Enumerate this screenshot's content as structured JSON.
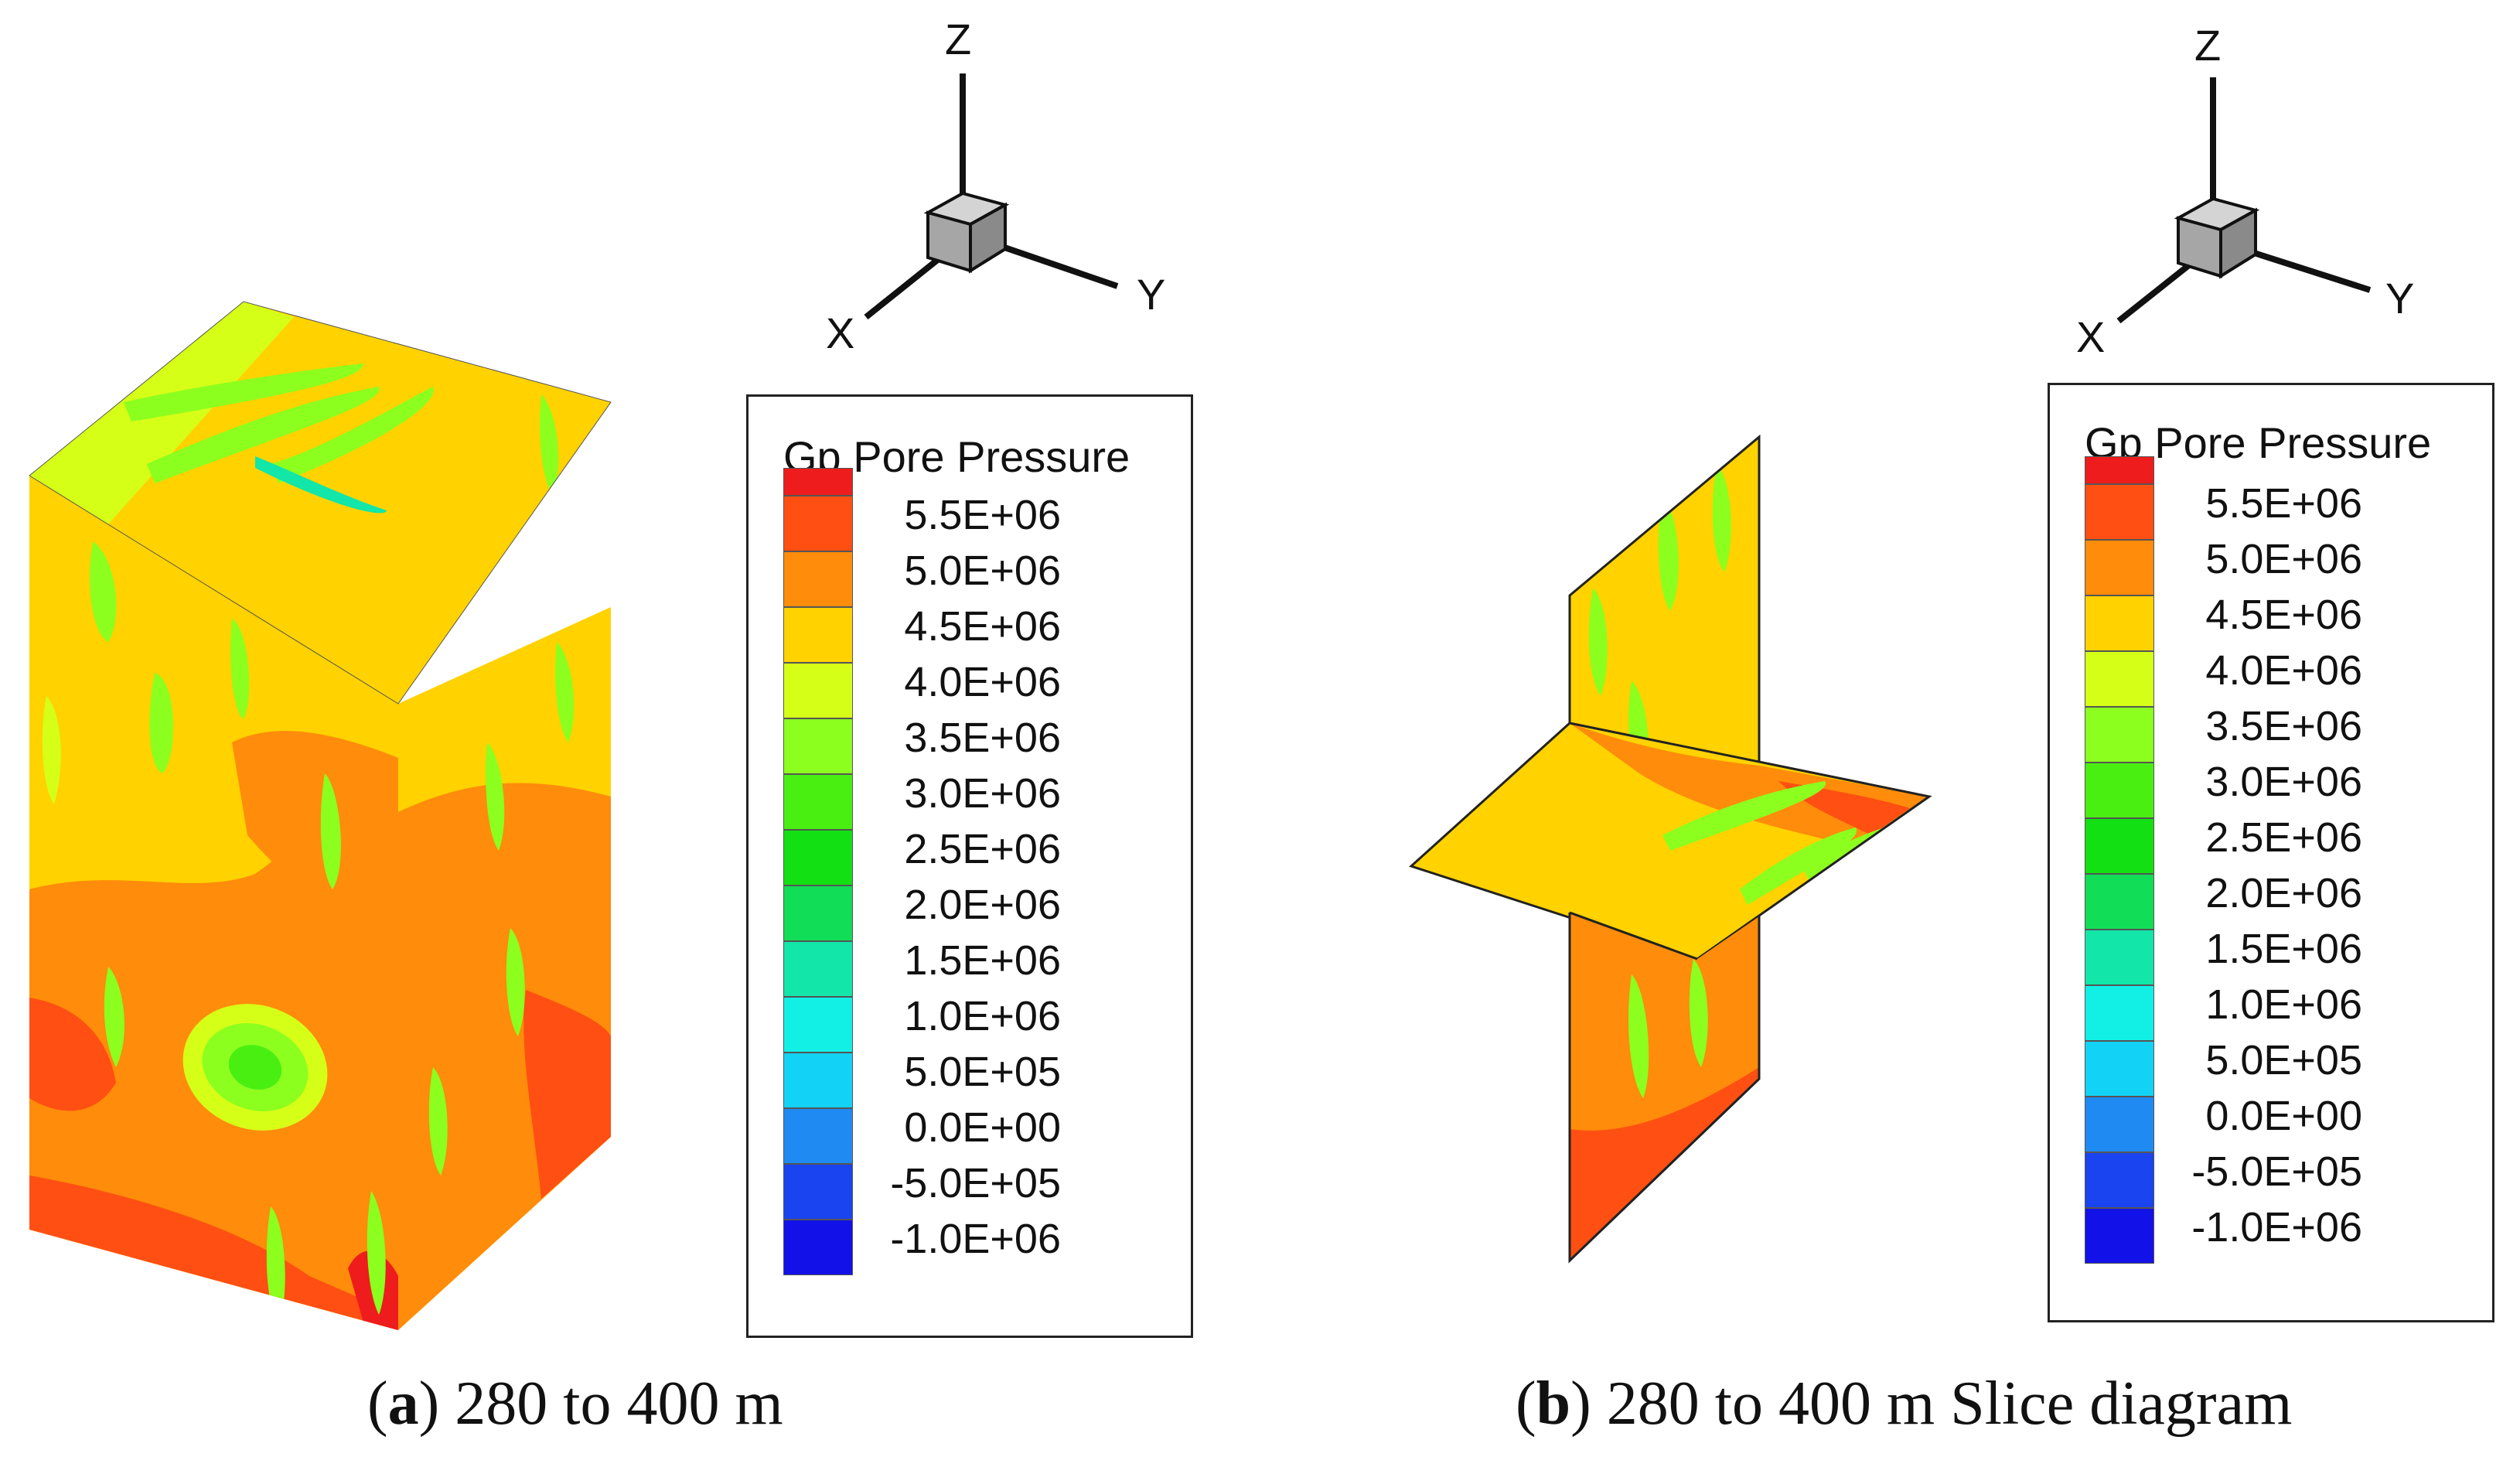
{
  "panels": [
    {
      "id": "a",
      "caption_letter": "a",
      "caption_text": "280 to 400 m",
      "view": "block"
    },
    {
      "id": "b",
      "caption_letter": "b",
      "caption_text": "280 to 400 m Slice diagram",
      "view": "slices"
    }
  ],
  "axes": {
    "z": "Z",
    "x": "X",
    "y": "Y"
  },
  "legend": {
    "title": "Gp Pore Pressure",
    "levels": [
      {
        "label": "5.5E+06",
        "color": "#ee1c1c"
      },
      {
        "label": "5.0E+06",
        "color": "#ff4f12"
      },
      {
        "label": "4.5E+06",
        "color": "#ff8c0a"
      },
      {
        "label": "4.0E+06",
        "color": "#ffd200"
      },
      {
        "label": "3.5E+06",
        "color": "#d6ff17"
      },
      {
        "label": "3.0E+06",
        "color": "#8cff1e"
      },
      {
        "label": "2.5E+06",
        "color": "#4aef12"
      },
      {
        "label": "2.0E+06",
        "color": "#12e012"
      },
      {
        "label": "1.5E+06",
        "color": "#12dd57"
      },
      {
        "label": "1.0E+06",
        "color": "#12e6a8"
      },
      {
        "label": "5.0E+05",
        "color": "#12f0e6"
      },
      {
        "label": "0.0E+00",
        "color": "#12d3f5"
      },
      {
        "label": "-5.0E+05",
        "color": "#1f8af2"
      },
      {
        "label": "-1.0E+06",
        "color": "#1a44ef"
      }
    ],
    "bottom_color": "#1212e8"
  },
  "field_colors": {
    "base": "#ffd200",
    "orange": "#ff8c0a",
    "red_orange": "#ff4f12",
    "red": "#ee1c1c",
    "yellow_green": "#d6ff17",
    "light_green": "#8cff1e",
    "green": "#4aef12",
    "cyan": "#12e6a8"
  }
}
